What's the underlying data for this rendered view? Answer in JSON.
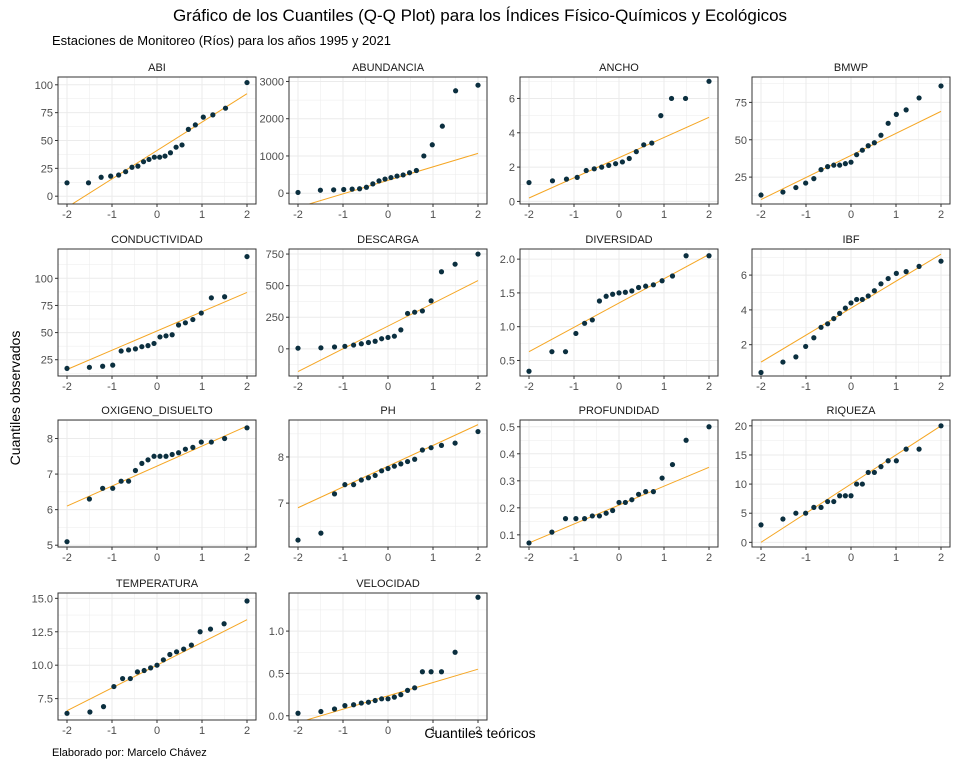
{
  "title": "Gráfico de los Cuantiles (Q-Q Plot) para los Índices Físico-Químicos y Ecológicos",
  "subtitle": "Estaciones de Monitoreo (Ríos) para los años 1995 y 2021",
  "xlabel": "Cuantiles teóricos",
  "ylabel": "Cuantiles observados",
  "caption": "Elaborado por: Marcelo Chávez",
  "colors": {
    "points": "#0b2f3f",
    "reference_line": "#f5a623",
    "grid": "#ebebeb",
    "panel_border": "#333333"
  },
  "chart_data": [
    {
      "type": "scatter",
      "title": "ABI",
      "x_ticks": [
        -2,
        -1,
        0,
        1,
        2
      ],
      "y_ticks": [
        0,
        25,
        50,
        75,
        100
      ],
      "xlim": [
        -2.2,
        2.2
      ],
      "ylim": [
        -7,
        107
      ],
      "y": [
        12,
        12,
        17,
        18,
        19,
        22,
        26,
        27,
        31,
        33,
        35,
        35,
        36,
        39,
        44,
        46,
        60,
        64,
        71,
        73,
        79,
        102
      ],
      "line": [
        [
          -2,
          -10
        ],
        [
          2,
          92
        ]
      ]
    },
    {
      "type": "scatter",
      "title": "ABUNDANCIA",
      "x_ticks": [
        -2,
        -1,
        0,
        1,
        2
      ],
      "y_ticks": [
        0,
        1000,
        2000,
        3000
      ],
      "xlim": [
        -2.2,
        2.2
      ],
      "ylim": [
        -290,
        3120
      ],
      "y": [
        20,
        80,
        90,
        100,
        110,
        120,
        160,
        250,
        330,
        380,
        420,
        460,
        490,
        550,
        610,
        1000,
        1300,
        1800,
        2750,
        2900
      ],
      "line": [
        [
          -2,
          -380
        ],
        [
          2,
          1070
        ]
      ]
    },
    {
      "type": "scatter",
      "title": "ANCHO",
      "x_ticks": [
        -2,
        -1,
        0,
        1,
        2
      ],
      "y_ticks": [
        0,
        2,
        4,
        6
      ],
      "xlim": [
        -2.2,
        2.2
      ],
      "ylim": [
        -0.15,
        7.25
      ],
      "y": [
        1.1,
        1.2,
        1.3,
        1.4,
        1.8,
        1.9,
        2.0,
        2.1,
        2.2,
        2.3,
        2.5,
        2.9,
        3.3,
        3.4,
        5.0,
        6.0,
        6.0,
        7.0
      ],
      "line": [
        [
          -2,
          0.2
        ],
        [
          2,
          4.9
        ]
      ]
    },
    {
      "type": "scatter",
      "title": "BMWP",
      "x_ticks": [
        -2,
        -1,
        0,
        1,
        2
      ],
      "y_ticks": [
        25,
        50,
        75
      ],
      "xlim": [
        -2.2,
        2.2
      ],
      "ylim": [
        7,
        92
      ],
      "y": [
        13,
        15,
        18,
        21,
        24,
        30,
        32,
        33,
        33,
        34,
        35,
        40,
        43,
        46,
        48,
        53,
        61,
        67,
        70,
        78,
        86
      ],
      "line": [
        [
          -2,
          10
        ],
        [
          2,
          69
        ]
      ]
    },
    {
      "type": "scatter",
      "title": "CONDUCTIVIDAD",
      "x_ticks": [
        -2,
        -1,
        0,
        1,
        2
      ],
      "y_ticks": [
        25,
        50,
        75,
        100
      ],
      "xlim": [
        -2.2,
        2.2
      ],
      "ylim": [
        10,
        127
      ],
      "y": [
        17,
        18,
        19,
        20,
        33,
        34,
        35,
        37,
        38,
        40,
        46,
        47,
        48,
        57,
        59,
        62,
        68,
        82,
        83,
        120
      ],
      "line": [
        [
          -2,
          16
        ],
        [
          2,
          87
        ]
      ]
    },
    {
      "type": "scatter",
      "title": "DESCARGA",
      "x_ticks": [
        -2,
        -1,
        0,
        1,
        2
      ],
      "y_ticks": [
        0,
        250,
        500,
        750
      ],
      "xlim": [
        -2.2,
        2.2
      ],
      "ylim": [
        -215,
        790
      ],
      "y": [
        5,
        8,
        15,
        20,
        30,
        40,
        50,
        60,
        80,
        90,
        100,
        150,
        280,
        290,
        300,
        380,
        610,
        670,
        750
      ],
      "line": [
        [
          -2,
          -180
        ],
        [
          2,
          540
        ]
      ]
    },
    {
      "type": "scatter",
      "title": "DIVERSIDAD",
      "x_ticks": [
        -2,
        -1,
        0,
        1,
        2
      ],
      "y_ticks": [
        0.5,
        1.0,
        1.5,
        2.0
      ],
      "xlim": [
        -2.2,
        2.2
      ],
      "ylim": [
        0.27,
        2.15
      ],
      "y": [
        0.34,
        0.63,
        0.63,
        0.9,
        1.05,
        1.1,
        1.38,
        1.45,
        1.48,
        1.5,
        1.51,
        1.53,
        1.58,
        1.6,
        1.62,
        1.68,
        1.75,
        2.05,
        2.05
      ],
      "line": [
        [
          -2,
          0.63
        ],
        [
          2,
          2.07
        ]
      ]
    },
    {
      "type": "scatter",
      "title": "IBF",
      "x_ticks": [
        -2,
        -1,
        0,
        1,
        2
      ],
      "y_ticks": [
        2,
        4,
        6
      ],
      "xlim": [
        -2.2,
        2.2
      ],
      "ylim": [
        0.2,
        7.5
      ],
      "y": [
        0.4,
        1.0,
        1.3,
        1.9,
        2.4,
        3.0,
        3.2,
        3.5,
        3.8,
        4.1,
        4.4,
        4.6,
        4.6,
        4.8,
        5.1,
        5.5,
        5.8,
        6.1,
        6.2,
        6.5,
        6.8
      ],
      "line": [
        [
          -2,
          1.0
        ],
        [
          2,
          7.2
        ]
      ]
    },
    {
      "type": "scatter",
      "title": "OXIGENO_DISUELTO",
      "x_ticks": [
        -2,
        -1,
        0,
        1,
        2
      ],
      "y_ticks": [
        5,
        6,
        7,
        8
      ],
      "xlim": [
        -2.2,
        2.2
      ],
      "ylim": [
        4.95,
        8.52
      ],
      "y": [
        5.1,
        6.3,
        6.6,
        6.6,
        6.8,
        6.8,
        7.1,
        7.3,
        7.4,
        7.5,
        7.5,
        7.5,
        7.55,
        7.6,
        7.7,
        7.75,
        7.9,
        7.9,
        8.0,
        8.3
      ],
      "line": [
        [
          -2,
          6.1
        ],
        [
          2,
          8.35
        ]
      ]
    },
    {
      "type": "scatter",
      "title": "PH",
      "x_ticks": [
        -2,
        -1,
        0,
        1,
        2
      ],
      "y_ticks": [
        7,
        8
      ],
      "xlim": [
        -2.2,
        2.2
      ],
      "ylim": [
        6.05,
        8.8
      ],
      "y": [
        6.2,
        6.35,
        7.2,
        7.4,
        7.4,
        7.5,
        7.55,
        7.6,
        7.7,
        7.75,
        7.8,
        7.85,
        7.9,
        7.95,
        8.15,
        8.2,
        8.25,
        8.3,
        8.55
      ],
      "line": [
        [
          -2,
          6.9
        ],
        [
          2,
          8.7
        ]
      ]
    },
    {
      "type": "scatter",
      "title": "PROFUNDIDAD",
      "x_ticks": [
        -2,
        -1,
        0,
        1,
        2
      ],
      "y_ticks": [
        0.1,
        0.2,
        0.3,
        0.4,
        0.5
      ],
      "xlim": [
        -2.2,
        2.2
      ],
      "ylim": [
        0.055,
        0.525
      ],
      "y": [
        0.07,
        0.11,
        0.16,
        0.16,
        0.16,
        0.17,
        0.17,
        0.18,
        0.19,
        0.22,
        0.22,
        0.23,
        0.25,
        0.26,
        0.26,
        0.31,
        0.36,
        0.45,
        0.5
      ],
      "line": [
        [
          -2,
          0.07
        ],
        [
          2,
          0.35
        ]
      ]
    },
    {
      "type": "scatter",
      "title": "RIQUEZA",
      "x_ticks": [
        -2,
        -1,
        0,
        1,
        2
      ],
      "y_ticks": [
        0,
        5,
        10,
        15,
        20
      ],
      "xlim": [
        -2.2,
        2.2
      ],
      "ylim": [
        -0.8,
        21
      ],
      "y": [
        3,
        4,
        5,
        5,
        6,
        6,
        7,
        7,
        8,
        8,
        8,
        10,
        10,
        12,
        12,
        13,
        14,
        14,
        16,
        16,
        20
      ],
      "line": [
        [
          -2,
          0
        ],
        [
          2,
          20
        ]
      ]
    },
    {
      "type": "scatter",
      "title": "TEMPERATURA",
      "x_ticks": [
        -2,
        -1,
        0,
        1,
        2
      ],
      "y_ticks": [
        7.5,
        10.0,
        12.5,
        15.0
      ],
      "xlim": [
        -2.2,
        2.2
      ],
      "ylim": [
        5.9,
        15.4
      ],
      "y": [
        6.4,
        6.5,
        6.9,
        8.4,
        9.0,
        9.0,
        9.5,
        9.6,
        9.8,
        10.0,
        10.4,
        10.8,
        11.0,
        11.2,
        11.5,
        12.5,
        12.7,
        13.1,
        14.8
      ],
      "line": [
        [
          -2,
          6.6
        ],
        [
          2,
          13.4
        ]
      ]
    },
    {
      "type": "scatter",
      "title": "VELOCIDAD",
      "x_ticks": [
        -2,
        -1,
        0,
        1,
        2
      ],
      "y_ticks": [
        0.0,
        0.5,
        1.0
      ],
      "xlim": [
        -2.2,
        2.2
      ],
      "ylim": [
        -0.05,
        1.45
      ],
      "y": [
        0.03,
        0.05,
        0.08,
        0.12,
        0.13,
        0.15,
        0.16,
        0.18,
        0.2,
        0.2,
        0.22,
        0.25,
        0.3,
        0.33,
        0.52,
        0.52,
        0.52,
        0.75,
        1.4
      ],
      "line": [
        [
          -2,
          -0.08
        ],
        [
          2,
          0.55
        ]
      ]
    }
  ]
}
